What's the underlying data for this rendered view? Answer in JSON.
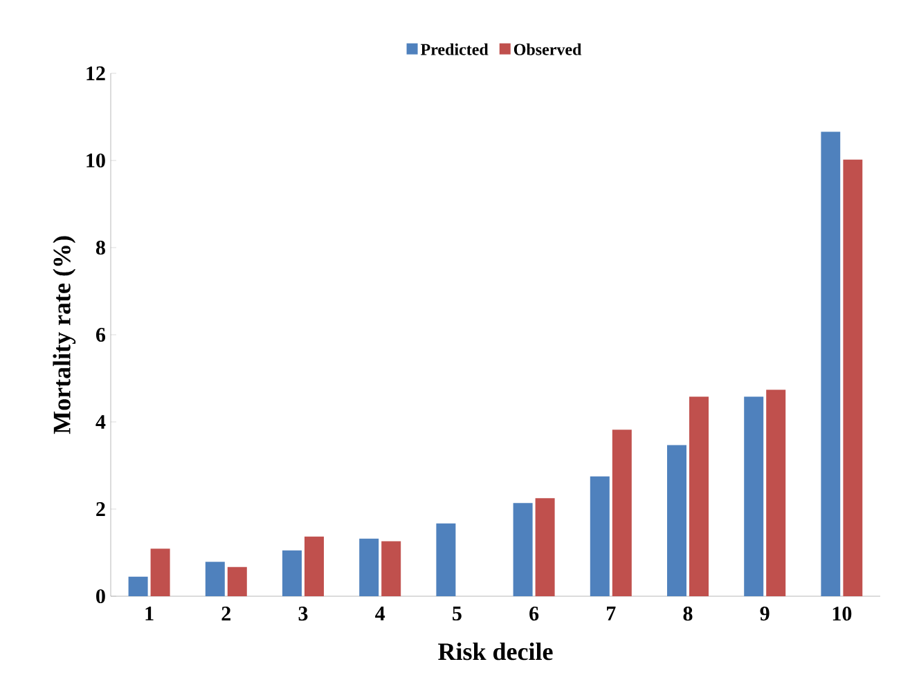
{
  "chart_data": {
    "type": "bar",
    "xlabel": "Risk decile",
    "ylabel": "Mortality rate (%)",
    "categories": [
      "1",
      "2",
      "3",
      "4",
      "5",
      "6",
      "7",
      "8",
      "9",
      "10"
    ],
    "series": [
      {
        "name": "Predicted",
        "color": "#4f81bd",
        "values": [
          0.45,
          0.79,
          1.05,
          1.32,
          1.67,
          2.14,
          2.75,
          3.47,
          4.58,
          10.66
        ]
      },
      {
        "name": "Observed",
        "color": "#c0504d",
        "values": [
          1.09,
          0.67,
          1.37,
          1.26,
          null,
          2.25,
          3.82,
          4.58,
          4.74,
          10.02
        ]
      }
    ],
    "ylim": [
      0,
      12
    ],
    "yticks": [
      0,
      2,
      4,
      6,
      8,
      10,
      12
    ],
    "grid": false,
    "legend": "top"
  }
}
